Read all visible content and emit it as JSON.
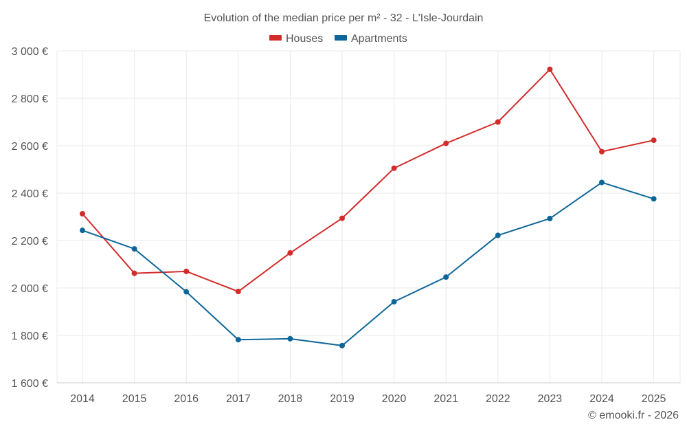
{
  "chart_data": {
    "type": "line",
    "title": "Evolution of the median price per m² - 32 - L'Isle-Jourdain",
    "categories": [
      "2014",
      "2015",
      "2016",
      "2017",
      "2018",
      "2019",
      "2020",
      "2021",
      "2022",
      "2023",
      "2024",
      "2025"
    ],
    "series": [
      {
        "name": "Houses",
        "color": "#d32a2a",
        "values": [
          2313,
          2062,
          2070,
          1985,
          2148,
          2294,
          2505,
          2610,
          2700,
          2922,
          2575,
          2623
        ]
      },
      {
        "name": "Apartments",
        "color": "#0d6699",
        "values": [
          2243,
          2165,
          1984,
          1782,
          1786,
          1757,
          1942,
          2046,
          2222,
          2293,
          2445,
          2376
        ]
      }
    ],
    "y_ticks": [
      1600,
      1800,
      2000,
      2200,
      2400,
      2600,
      2800,
      3000
    ],
    "y_tick_labels": [
      "1 600 €",
      "1 800 €",
      "2 000 €",
      "2 200 €",
      "2 400 €",
      "2 600 €",
      "2 800 €",
      "3 000 €"
    ],
    "ylim": [
      1600,
      3000
    ],
    "xlabel": "",
    "ylabel": "",
    "grid": true,
    "legend_position": "top-center"
  },
  "credit": "© emooki.fr - 2026"
}
